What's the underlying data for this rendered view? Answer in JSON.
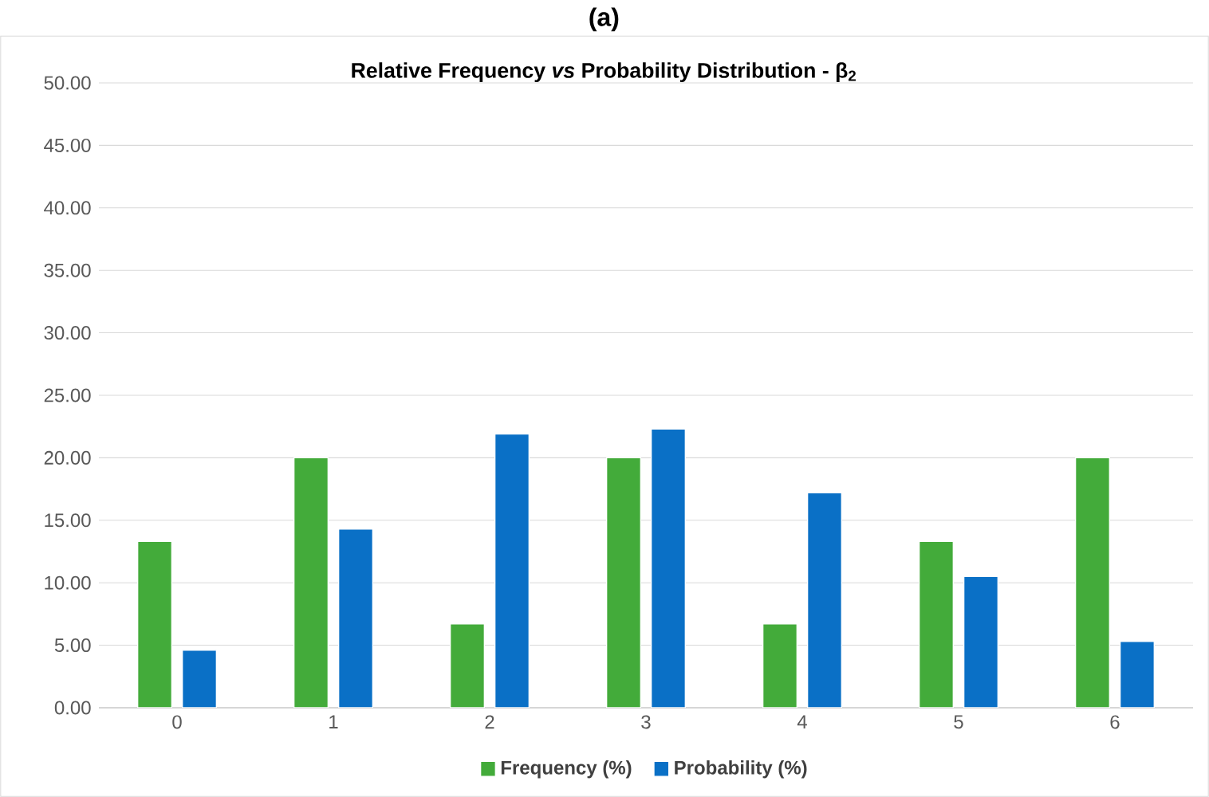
{
  "chart_data": {
    "type": "bar",
    "title": "Relative Frequency *vs* Probability Distribution - β$_{2}$",
    "annotations": [
      "(a)"
    ],
    "categories": [
      "0",
      "1",
      "2",
      "3",
      "4",
      "5",
      "6"
    ],
    "series": [
      {
        "name": "Frequency (%)",
        "color": "#43ab3a",
        "values": [
          13.3,
          20.0,
          6.7,
          20.0,
          6.7,
          13.3,
          20.0
        ]
      },
      {
        "name": "Probability (%)",
        "color": "#0a70c6",
        "values": [
          4.6,
          14.3,
          21.9,
          22.3,
          17.2,
          10.5,
          5.3
        ]
      }
    ],
    "ylim": [
      0,
      50
    ],
    "yticks": [
      {
        "value": 0,
        "label": "0.00"
      },
      {
        "value": 5,
        "label": "5.00"
      },
      {
        "value": 10,
        "label": "10.00"
      },
      {
        "value": 15,
        "label": "15.00"
      },
      {
        "value": 20,
        "label": "20.00"
      },
      {
        "value": 25,
        "label": "25.00"
      },
      {
        "value": 30,
        "label": "30.00"
      },
      {
        "value": 35,
        "label": "35.00"
      },
      {
        "value": 40,
        "label": "40.00"
      },
      {
        "value": 45,
        "label": "45.00"
      },
      {
        "value": 50,
        "label": "50.00"
      }
    ],
    "grid": "y",
    "legend": "bottom"
  }
}
